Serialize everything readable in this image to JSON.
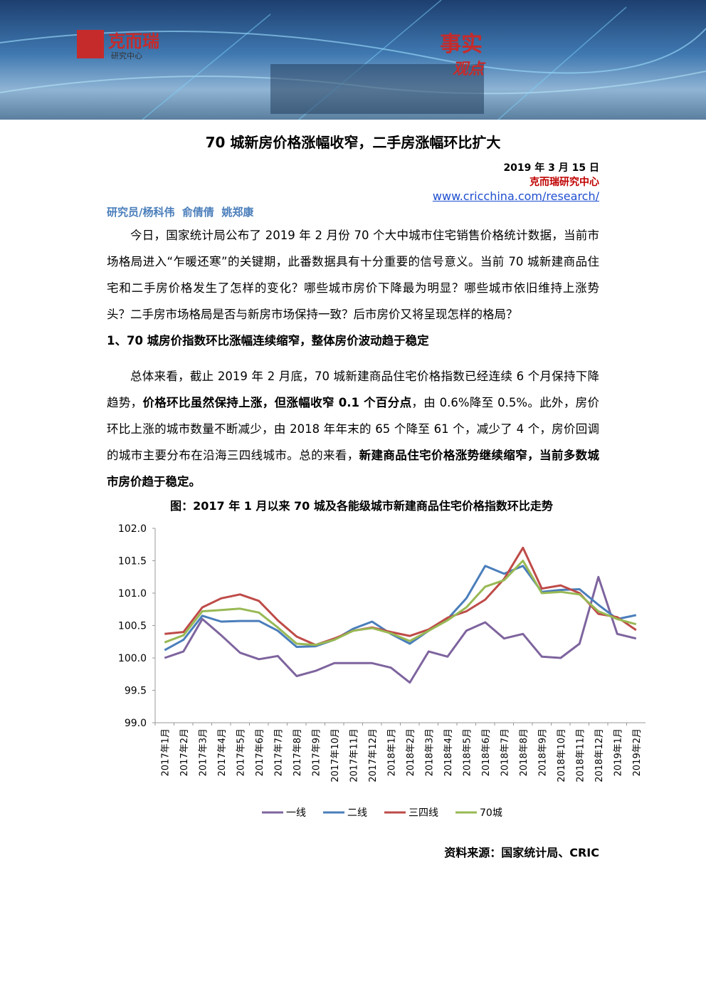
{
  "header": {
    "logo_name": "克而瑞",
    "logo_sub": "研究中心",
    "slogan_1": "事实",
    "slogan_2": "观点"
  },
  "title": "70 城新房价格涨幅收窄，二手房涨幅环比扩大",
  "date": "2019 年 3 月 15 日",
  "org": "克而瑞研究中心",
  "url": "www.cricchina.com/research/",
  "authors": "研究员/杨科伟  俞倩倩  姚郑康",
  "paragraphs": [
    {
      "runs": [
        {
          "text": "今日，国家统计局公布了 2019 年 2 月份 70 个大中城市住宅销售价格统计数据，当前市场格局进入“乍暖还寒”的关键期，此番数据具有十分重要的信号意义。当前 70 城新建商品住宅和二手房价格发生了怎样的变化？哪些城市房价下降最为明显？哪些城市依旧维持上涨势头？二手房市场格局是否与新房市场保持一致？后市房价又将呈现怎样的格局？",
          "bold": false
        }
      ]
    },
    {
      "heading": "1、70 城房价指数环比涨幅连续缩窄，整体房价波动趋于稳定"
    },
    {
      "runs": [
        {
          "text": "总体来看，截止 2019 年 2 月底，70 城新建商品住宅价格指数已经连续 6 个月保持下降趋势，",
          "bold": false
        },
        {
          "text": "价格环比虽然保持上涨，但涨幅收窄 0.1 个百分点",
          "bold": true
        },
        {
          "text": "，由 0.6%降至 0.5%。此外，房价环比上涨的城市数量不断减少，由 2018 年年末的 65 个降至 61 个，减少了 4 个，房价回调的城市主要分布在沿海三四线城市。总的来看，",
          "bold": false
        },
        {
          "text": "新建商品住宅价格涨势继续缩窄，当前多数城市房价趋于稳定。",
          "bold": true
        }
      ]
    }
  ],
  "chart_data": {
    "type": "line",
    "title": "图：2017 年 1 月以来 70 城及各能级城市新建商品住宅价格指数环比走势",
    "categories": [
      "2017年1月",
      "2017年2月",
      "2017年3月",
      "2017年4月",
      "2017年5月",
      "2017年6月",
      "2017年7月",
      "2017年8月",
      "2017年9月",
      "2017年10月",
      "2017年11月",
      "2017年12月",
      "2018年1月",
      "2018年2月",
      "2018年3月",
      "2018年4月",
      "2018年5月",
      "2018年6月",
      "2018年7月",
      "2018年8月",
      "2018年9月",
      "2018年10月",
      "2018年11月",
      "2018年12月",
      "2019年1月",
      "2019年2月"
    ],
    "series": [
      {
        "name": "一线",
        "color": "#7e649e",
        "values": [
          100.0,
          100.1,
          100.6,
          100.35,
          100.08,
          99.98,
          100.03,
          99.72,
          99.8,
          99.92,
          99.92,
          99.92,
          99.85,
          99.62,
          100.1,
          100.02,
          100.42,
          100.55,
          100.3,
          100.37,
          100.02,
          100.0,
          100.22,
          101.25,
          100.37,
          100.3
        ]
      },
      {
        "name": "二线",
        "color": "#4a7ebb",
        "values": [
          100.12,
          100.28,
          100.65,
          100.56,
          100.57,
          100.57,
          100.42,
          100.17,
          100.18,
          100.28,
          100.45,
          100.56,
          100.37,
          100.22,
          100.42,
          100.6,
          100.92,
          101.42,
          101.3,
          101.42,
          101.02,
          101.05,
          101.06,
          100.82,
          100.6,
          100.66
        ]
      },
      {
        "name": "三四线",
        "color": "#be4b48",
        "values": [
          100.37,
          100.4,
          100.78,
          100.92,
          100.98,
          100.88,
          100.58,
          100.33,
          100.2,
          100.3,
          100.42,
          100.47,
          100.4,
          100.34,
          100.44,
          100.62,
          100.72,
          100.9,
          101.22,
          101.7,
          101.07,
          101.12,
          101.0,
          100.68,
          100.63,
          100.43
        ]
      },
      {
        "name": "70城",
        "color": "#98b954",
        "values": [
          100.24,
          100.35,
          100.72,
          100.74,
          100.76,
          100.7,
          100.47,
          100.22,
          100.2,
          100.28,
          100.42,
          100.46,
          100.38,
          100.26,
          100.42,
          100.58,
          100.78,
          101.1,
          101.2,
          101.5,
          101.0,
          101.02,
          100.98,
          100.72,
          100.6,
          100.52
        ]
      }
    ],
    "ylim": [
      99,
      102
    ],
    "yticks": [
      {
        "value": 99,
        "label": "99.0"
      },
      99.5,
      {
        "value": 100,
        "label": "100.0"
      },
      100.5,
      {
        "value": 101,
        "label": "101.0"
      },
      101.5,
      {
        "value": 102,
        "label": "102.0"
      }
    ],
    "grid": false
  },
  "source": "资料来源：国家统计局、CRIC"
}
